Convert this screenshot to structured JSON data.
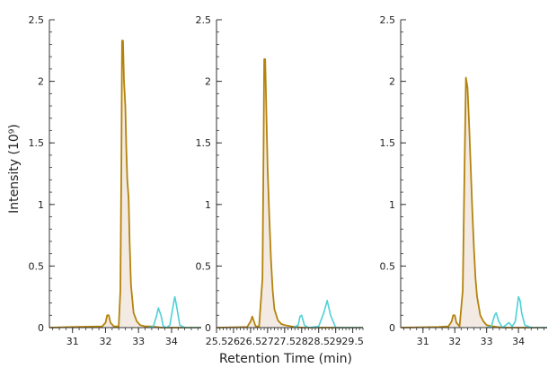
{
  "figure": {
    "ylabel": "Intensity (10⁹)",
    "xlabel": "Retention Time (min)"
  },
  "colors": {
    "primary": "#b5830c",
    "primary_fill": "#f3ebe3",
    "secondary": "#4fd0d8",
    "axis": "#333333"
  },
  "chart_data": [
    {
      "type": "line",
      "xlim": [
        30.3,
        34.9
      ],
      "ylim": [
        0,
        2.5
      ],
      "xticks": [
        31,
        32,
        33,
        34
      ],
      "xtick_labels": [
        "31",
        "32",
        "33",
        "34"
      ],
      "xminor_step": 0.2,
      "yticks": [
        0,
        0.5,
        1,
        1.5,
        2,
        2.5
      ],
      "ytick_labels": [
        "0",
        "0.5",
        "1",
        "1.5",
        "2",
        "2.5"
      ],
      "yminor_step": 0.1,
      "series": [
        {
          "role": "primary",
          "x": [
            30.3,
            31.0,
            31.9,
            32.0,
            32.05,
            32.1,
            32.15,
            32.25,
            32.4,
            32.45,
            32.48,
            32.5,
            32.53,
            32.56,
            32.6,
            32.63,
            32.66,
            32.7,
            32.73,
            32.77,
            32.85,
            32.95,
            33.05,
            33.2,
            33.4,
            33.7,
            34.9
          ],
          "y": [
            0,
            0.005,
            0.01,
            0.04,
            0.1,
            0.1,
            0.04,
            0.01,
            0.01,
            0.3,
            1.3,
            2.33,
            2.33,
            2.0,
            1.8,
            1.45,
            1.2,
            1.05,
            0.7,
            0.35,
            0.12,
            0.05,
            0.02,
            0.01,
            0.01,
            0.0,
            0.0
          ]
        },
        {
          "role": "secondary",
          "x": [
            33.3,
            33.45,
            33.55,
            33.6,
            33.68,
            33.75,
            33.85,
            33.95,
            34.05,
            34.1,
            34.15,
            34.25,
            34.4,
            34.9
          ],
          "y": [
            0,
            0.01,
            0.1,
            0.16,
            0.1,
            0.01,
            0.0,
            0.02,
            0.18,
            0.25,
            0.18,
            0.02,
            0.0,
            0.0
          ]
        }
      ]
    },
    {
      "type": "line",
      "xlim": [
        25.5,
        29.8
      ],
      "ylim": [
        0,
        2.5
      ],
      "xticks": [
        25.5,
        26,
        26.5,
        27,
        27.5,
        28,
        28.5,
        29,
        29.5
      ],
      "xtick_labels": [
        "25.5",
        "26",
        "26.5",
        "27",
        "27.5",
        "28",
        "28.5",
        "29",
        "29.5"
      ],
      "xminor_step": 0.1,
      "yticks": [
        0,
        0.5,
        1,
        1.5,
        2,
        2.5
      ],
      "ytick_labels": [
        "0",
        "0.5",
        "1",
        "1.5",
        "2",
        "2.5"
      ],
      "yminor_step": 0.1,
      "series": [
        {
          "role": "primary",
          "x": [
            25.5,
            26.4,
            26.5,
            26.55,
            26.6,
            26.65,
            26.75,
            26.85,
            26.88,
            26.9,
            26.93,
            26.96,
            27.0,
            27.05,
            27.1,
            27.15,
            27.2,
            27.3,
            27.4,
            27.5,
            27.7,
            28.0,
            29.8
          ],
          "y": [
            0,
            0.005,
            0.05,
            0.09,
            0.05,
            0.01,
            0.01,
            0.4,
            1.4,
            2.18,
            2.18,
            1.8,
            1.3,
            0.9,
            0.55,
            0.3,
            0.15,
            0.06,
            0.03,
            0.02,
            0.01,
            0.0,
            0.0
          ]
        },
        {
          "role": "secondary",
          "x": [
            27.75,
            27.9,
            27.95,
            28.0,
            28.08,
            28.2,
            28.5,
            28.65,
            28.75,
            28.85,
            29.0,
            29.8
          ],
          "y": [
            0,
            0.02,
            0.09,
            0.1,
            0.02,
            0.0,
            0.01,
            0.12,
            0.22,
            0.1,
            0.0,
            0.0
          ]
        }
      ]
    },
    {
      "type": "line",
      "xlim": [
        30.3,
        34.9
      ],
      "ylim": [
        0,
        2.5
      ],
      "xticks": [
        31,
        32,
        33,
        34
      ],
      "xtick_labels": [
        "31",
        "32",
        "33",
        "34"
      ],
      "xminor_step": 0.2,
      "yticks": [
        0,
        0.5,
        1,
        1.5,
        2,
        2.5
      ],
      "ytick_labels": [
        "0",
        "0.5",
        "1",
        "1.5",
        "2",
        "2.5"
      ],
      "yminor_step": 0.1,
      "series": [
        {
          "role": "primary",
          "x": [
            30.3,
            31.5,
            31.8,
            31.9,
            31.95,
            32.0,
            32.05,
            32.15,
            32.25,
            32.3,
            32.35,
            32.4,
            32.45,
            32.5,
            32.55,
            32.6,
            32.65,
            32.7,
            32.8,
            32.9,
            33.0,
            33.2,
            33.5,
            34.9
          ],
          "y": [
            0,
            0.005,
            0.01,
            0.05,
            0.1,
            0.1,
            0.04,
            0.01,
            0.3,
            1.2,
            2.03,
            1.95,
            1.65,
            1.3,
            0.95,
            0.65,
            0.4,
            0.25,
            0.1,
            0.05,
            0.02,
            0.01,
            0.0,
            0.0
          ]
        },
        {
          "role": "secondary",
          "x": [
            33.0,
            33.15,
            33.25,
            33.3,
            33.38,
            33.5,
            33.6,
            33.7,
            33.8,
            33.9,
            34.0,
            34.05,
            34.1,
            34.2,
            34.4,
            34.9
          ],
          "y": [
            0,
            0.01,
            0.1,
            0.12,
            0.05,
            0.0,
            0.02,
            0.04,
            0.01,
            0.05,
            0.25,
            0.22,
            0.12,
            0.02,
            0.0,
            0.0
          ]
        }
      ]
    }
  ]
}
